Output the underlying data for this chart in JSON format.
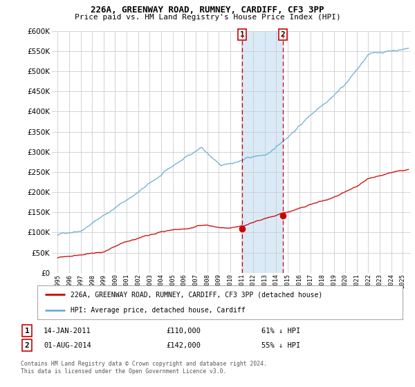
{
  "title1": "226A, GREENWAY ROAD, RUMNEY, CARDIFF, CF3 3PP",
  "title2": "Price paid vs. HM Land Registry's House Price Index (HPI)",
  "legend_property": "226A, GREENWAY ROAD, RUMNEY, CARDIFF, CF3 3PP (detached house)",
  "legend_hpi": "HPI: Average price, detached house, Cardiff",
  "footnote1": "Contains HM Land Registry data © Crown copyright and database right 2024.",
  "footnote2": "This data is licensed under the Open Government Licence v3.0.",
  "marker1_date_label": "14-JAN-2011",
  "marker1_price": 110000,
  "marker1_hpi_text": "61% ↓ HPI",
  "marker2_date_label": "01-AUG-2014",
  "marker2_price": 142000,
  "marker2_hpi_text": "55% ↓ HPI",
  "marker1_x": 2011.04,
  "marker2_x": 2014.58,
  "ylim": [
    0,
    600000
  ],
  "yticks": [
    0,
    50000,
    100000,
    150000,
    200000,
    250000,
    300000,
    350000,
    400000,
    450000,
    500000,
    550000,
    600000
  ],
  "xlim_start": 1994.5,
  "xlim_end": 2025.7,
  "hpi_color": "#6baed6",
  "property_color": "#cc0000",
  "shade_color": "#daeaf7",
  "grid_color": "#cccccc",
  "bg_color": "#ffffff",
  "marker_color": "#cc0000"
}
